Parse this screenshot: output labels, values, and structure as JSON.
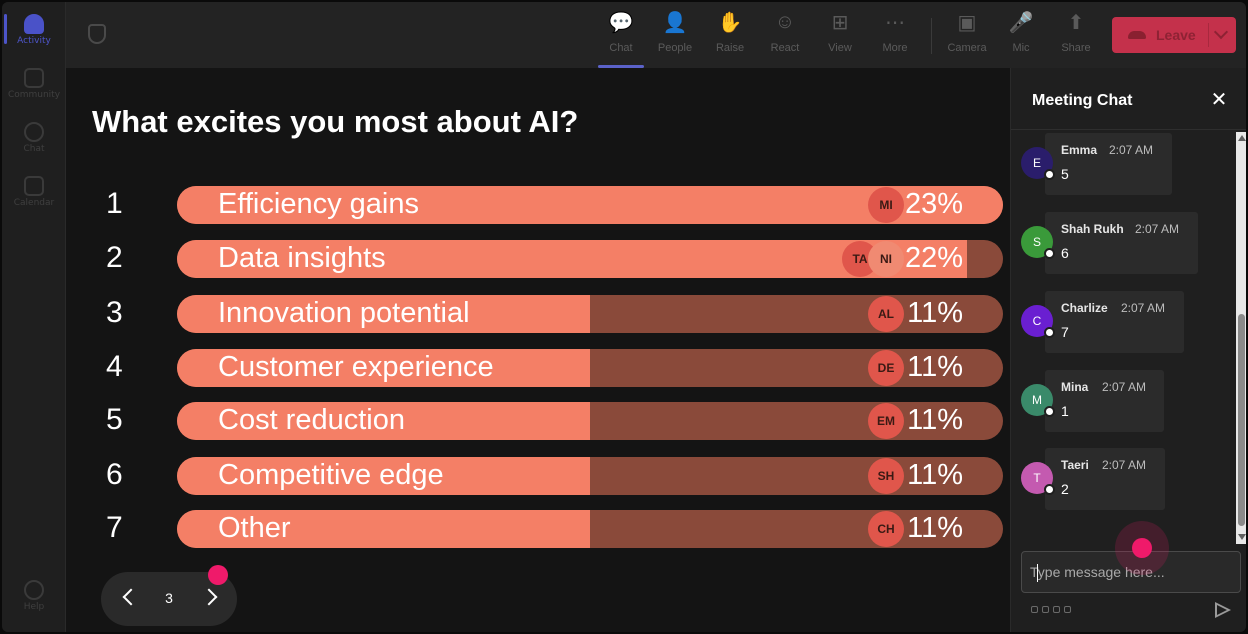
{
  "rail": {
    "items": [
      {
        "label": "Activity",
        "icon": "bell-icon"
      },
      {
        "label": "Community",
        "icon": "community-icon"
      },
      {
        "label": "Chat",
        "icon": "chat-icon"
      },
      {
        "label": "Calendar",
        "icon": "calendar-icon"
      }
    ],
    "help": {
      "label": "Help",
      "icon": "help-icon"
    }
  },
  "toolbar": {
    "buttons": [
      {
        "label": "Chat",
        "icon": "chat-bubble-icon",
        "glyph": "💬"
      },
      {
        "label": "People",
        "icon": "people-icon",
        "glyph": "👤"
      },
      {
        "label": "Raise",
        "icon": "raise-hand-icon",
        "glyph": "✋"
      },
      {
        "label": "React",
        "icon": "smiley-icon",
        "glyph": "☺"
      },
      {
        "label": "View",
        "icon": "grid-view-icon",
        "glyph": "⊞"
      },
      {
        "label": "More",
        "icon": "more-dots-icon",
        "glyph": "⋯"
      },
      {
        "label": "Camera",
        "icon": "camera-off-icon",
        "glyph": "▣"
      },
      {
        "label": "Mic",
        "icon": "mic-icon",
        "glyph": "🎤"
      },
      {
        "label": "Share",
        "icon": "share-screen-icon",
        "glyph": "⬆"
      }
    ],
    "leave_label": "Leave"
  },
  "poll": {
    "question": "What excites you most about AI?",
    "options": [
      {
        "num": "1",
        "label": "Efficiency gains",
        "percent_text": "23%",
        "fill": 1.0,
        "avatars": [
          "MI"
        ]
      },
      {
        "num": "2",
        "label": "Data insights",
        "percent_text": "22%",
        "fill": 0.957,
        "avatars": [
          "TA",
          "NI"
        ]
      },
      {
        "num": "3",
        "label": "Innovation potential",
        "percent_text": "11%",
        "fill": 0.5,
        "avatars": [
          "AL"
        ]
      },
      {
        "num": "4",
        "label": "Customer experience",
        "percent_text": "11%",
        "fill": 0.5,
        "avatars": [
          "DE"
        ]
      },
      {
        "num": "5",
        "label": "Cost reduction",
        "percent_text": "11%",
        "fill": 0.5,
        "avatars": [
          "EM"
        ]
      },
      {
        "num": "6",
        "label": "Competitive edge",
        "percent_text": "11%",
        "fill": 0.5,
        "avatars": [
          "SH"
        ]
      },
      {
        "num": "7",
        "label": "Other",
        "percent_text": "11%",
        "fill": 0.5,
        "avatars": [
          "CH"
        ]
      }
    ],
    "page": "3"
  },
  "chat": {
    "title": "Meeting Chat",
    "messages": [
      {
        "initial": "E",
        "name": "Emma",
        "time": "2:07 AM",
        "text": "5",
        "color": "#2a1d6b"
      },
      {
        "initial": "S",
        "name": "Shah Rukh",
        "time": "2:07 AM",
        "text": "6",
        "color": "#3a9a3a"
      },
      {
        "initial": "C",
        "name": "Charlize",
        "time": "2:07 AM",
        "text": "7",
        "color": "#6a1fd1"
      },
      {
        "initial": "M",
        "name": "Mina",
        "time": "2:07 AM",
        "text": "1",
        "color": "#3a8a6a"
      },
      {
        "initial": "T",
        "name": "Taeri",
        "time": "2:07 AM",
        "text": "2",
        "color": "#c45ab0"
      }
    ],
    "input_placeholder": "Type message here..."
  },
  "colors": {
    "bar_fill": "#f47f66",
    "bar_track": "#8a4a3a",
    "leave": "#c4314b",
    "accent": "#5b62c9",
    "cursor_dot": "#ef1a6a"
  }
}
